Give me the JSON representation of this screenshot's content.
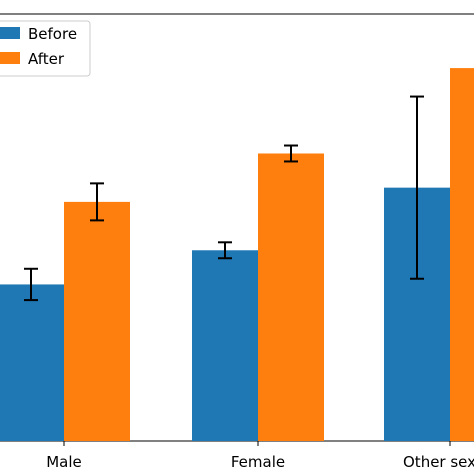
{
  "chart_data": {
    "type": "bar",
    "categories": [
      "Male",
      "Female",
      "Other sex"
    ],
    "series": [
      {
        "name": "Before",
        "color": "#1f77b4",
        "values": [
          5.5,
          6.7,
          8.9
        ],
        "errors": [
          0.55,
          0.28,
          3.2
        ]
      },
      {
        "name": "After",
        "color": "#ff7f0e",
        "values": [
          8.4,
          10.1,
          13.1
        ],
        "errors": [
          0.65,
          0.28,
          0.6
        ]
      }
    ],
    "title": "",
    "xlabel": "",
    "ylabel": "",
    "ylim": [
      0,
      15
    ],
    "grid": false,
    "legend_position": "top-left",
    "axis_color": "#000000",
    "error_color": "#000000"
  }
}
